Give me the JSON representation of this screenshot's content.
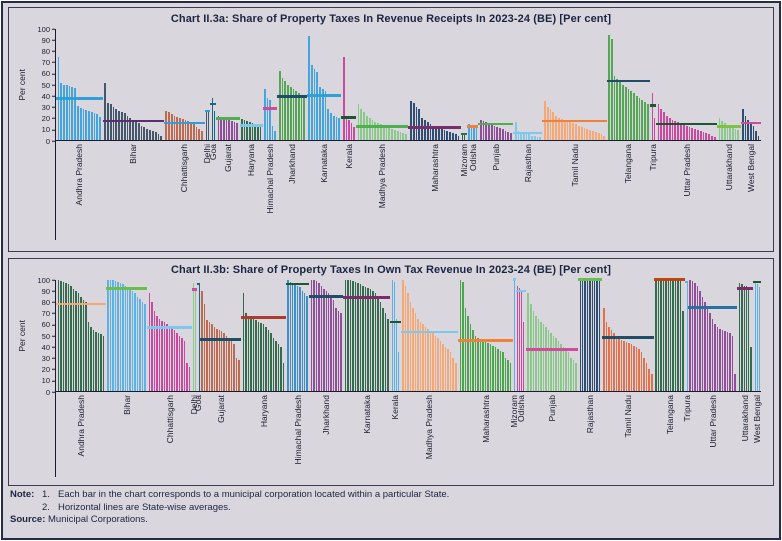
{
  "axis": {
    "ylabel": "Per cent",
    "yticks": [
      0,
      10,
      20,
      30,
      40,
      50,
      60,
      70,
      80,
      90,
      100
    ]
  },
  "notes": {
    "note_label": "Note:",
    "item1_num": "1.",
    "item1": "Each bar in the chart corresponds to a municipal corporation located within a particular State.",
    "item2_num": "2.",
    "item2": "Horizontal lines are State-wise averages.",
    "source_label": "Source:",
    "source_text": "Municipal Corporations."
  },
  "chart_data": [
    {
      "type": "bar",
      "title": "Chart II.3a: Share of Property Taxes In Revenue Receipts In 2023-24 (BE) [Per cent]",
      "ylabel": "Per cent",
      "ylim": [
        0,
        100
      ],
      "legend": "none",
      "grid": false,
      "annotation": "Each bar is a municipal corporation; horizontal lines are State-wise averages",
      "groups": [
        {
          "state": "Andhra Pradesh",
          "bar_color": "#44A4DC",
          "avg": 37,
          "avg_line_color": "#2E9FD8",
          "values": [
            75,
            51,
            50,
            50,
            49,
            48,
            47,
            31,
            29,
            28,
            27,
            26,
            25,
            24,
            23,
            21
          ]
        },
        {
          "state": "Bihar",
          "bar_color": "#45586B",
          "avg": 17,
          "avg_line_color": "#5B2C6F",
          "values": [
            51,
            33,
            32,
            30,
            28,
            26,
            25,
            24,
            22,
            20,
            18,
            16,
            15,
            13,
            12,
            10,
            9,
            8,
            7,
            5,
            4
          ]
        },
        {
          "state": "Chhattisgarh",
          "bar_color": "#BC6A50",
          "avg": 15,
          "avg_line_color": "#2E9FD8",
          "values": [
            26,
            25,
            23,
            22,
            21,
            20,
            19,
            18,
            17,
            16,
            14,
            12,
            10,
            8
          ]
        },
        {
          "state": "Delhi",
          "bar_color": "#45586B",
          "avg": 26,
          "avg_line_color": "#2E9FD8",
          "values": [
            27,
            26
          ]
        },
        {
          "state": "Goa",
          "bar_color": "#166A7F",
          "avg": 32,
          "avg_line_color": "#166A7F",
          "values": [
            38,
            26
          ]
        },
        {
          "state": "Gujarat",
          "bar_color": "#8E4F96",
          "avg": 19,
          "avg_line_color": "#4CAF50",
          "values": [
            22,
            21,
            20,
            19,
            18,
            17,
            16,
            15
          ]
        },
        {
          "state": "Haryana",
          "bar_color": "#336B4D",
          "avg": 13,
          "avg_line_color": "#7EC8EC",
          "values": [
            19,
            18,
            17,
            16,
            15,
            14,
            13,
            12
          ]
        },
        {
          "state": "Himachal Pradesh",
          "bar_color": "#44A4DC",
          "avg": 28,
          "avg_line_color": "#D14A9E",
          "values": [
            46,
            38,
            36,
            13,
            8
          ]
        },
        {
          "state": "Jharkhand",
          "bar_color": "#54A654",
          "avg": 39,
          "avg_line_color": "#1F4E6B",
          "values": [
            62,
            56,
            53,
            50,
            48,
            46,
            44,
            42,
            40,
            38
          ]
        },
        {
          "state": "Karnataka",
          "bar_color": "#44A4DC",
          "avg": 40,
          "avg_line_color": "#2E9FD8",
          "values": [
            94,
            68,
            64,
            61,
            48,
            46,
            44,
            28,
            24,
            22,
            21,
            20
          ]
        },
        {
          "state": "Kerala",
          "bar_color": "#C84A9E",
          "avg": 20,
          "avg_line_color": "#1E5631",
          "values": [
            75,
            21,
            18,
            15,
            12
          ]
        },
        {
          "state": "Madhya Pradesh",
          "bar_color": "#8BC98B",
          "avg": 12,
          "avg_line_color": "#4CAF50",
          "values": [
            32,
            28,
            25,
            22,
            20,
            18,
            16,
            15,
            14,
            13,
            12,
            11,
            10,
            9,
            8,
            7,
            6,
            5
          ]
        },
        {
          "state": "Maharashtra",
          "bar_color": "#2E4E72",
          "avg": 11,
          "avg_line_color": "#7B2D6B",
          "values": [
            35,
            33,
            30,
            28,
            20,
            18,
            16,
            14,
            13,
            12,
            11,
            10,
            9,
            8,
            7,
            6,
            5,
            4
          ]
        },
        {
          "state": "Mizoram",
          "bar_color": "#336B4D",
          "avg": 5,
          "avg_line_color": "#336B4D",
          "values": [
            6,
            5
          ]
        },
        {
          "state": "Odisha",
          "bar_color": "#44A4DC",
          "avg": 12,
          "avg_line_color": "#F0813C",
          "values": [
            14,
            13,
            12,
            11
          ]
        },
        {
          "state": "Punjab",
          "bar_color": "#8E4F96",
          "avg": 14,
          "avg_line_color": "#4CAF50",
          "values": [
            18,
            17,
            16,
            15,
            14,
            13,
            12,
            11,
            10,
            8,
            7,
            6
          ]
        },
        {
          "state": "Rajasthan",
          "bar_color": "#7EC8EC",
          "avg": 6,
          "avg_line_color": "#7EC8EC",
          "values": [
            16,
            8,
            7,
            6,
            5,
            5,
            4,
            4,
            3,
            3
          ]
        },
        {
          "state": "Tamil Nadu",
          "bar_color": "#F5A873",
          "avg": 17,
          "avg_line_color": "#F0813C",
          "values": [
            35,
            30,
            28,
            25,
            22,
            20,
            19,
            18,
            17,
            16,
            15,
            14,
            13,
            12,
            11,
            10,
            9,
            8,
            7,
            6,
            5,
            4
          ]
        },
        {
          "state": "Telangana",
          "bar_color": "#54A654",
          "avg": 53,
          "avg_line_color": "#1F4E6B",
          "values": [
            95,
            91,
            58,
            55,
            52,
            50,
            48,
            46,
            44,
            42,
            40,
            38,
            36,
            34,
            32
          ]
        },
        {
          "state": "Tripura",
          "bar_color": "#C84A9E",
          "avg": 31,
          "avg_line_color": "#1E5631",
          "values": [
            42,
            20
          ]
        },
        {
          "state": "Uttar Pradesh",
          "bar_color": "#C84A9E",
          "avg": 14,
          "avg_line_color": "#1E5631",
          "values": [
            32,
            28,
            25,
            22,
            20,
            18,
            17,
            16,
            15,
            14,
            13,
            12,
            11,
            10,
            9,
            8,
            7,
            6,
            5,
            4,
            3
          ]
        },
        {
          "state": "Uttarakhand",
          "bar_color": "#8BC98B",
          "avg": 12,
          "avg_line_color": "#7DC242",
          "values": [
            20,
            17,
            15,
            13,
            12,
            11,
            10,
            9
          ]
        },
        {
          "state": "West Bengal",
          "bar_color": "#2E4E72",
          "avg": 15,
          "avg_line_color": "#D14A9E",
          "values": [
            28,
            22,
            18,
            15,
            13,
            8,
            4
          ]
        }
      ]
    },
    {
      "type": "bar",
      "title": "Chart II.3b: Share of Property Taxes In Own Tax Revenue In 2023-24 (BE) [Per cent]",
      "ylabel": "Per cent",
      "ylim": [
        0,
        100
      ],
      "legend": "none",
      "grid": false,
      "annotation": "Each bar is a municipal corporation; horizontal lines are State-wise averages",
      "groups": [
        {
          "state": "Andhra Pradesh",
          "bar_color": "#336B4D",
          "avg": 78,
          "avg_line_color": "#F5A873",
          "values": [
            100,
            99,
            98,
            97,
            96,
            95,
            92,
            90,
            88,
            85,
            82,
            80,
            62,
            58,
            55,
            53,
            52,
            51,
            50
          ]
        },
        {
          "state": "Bihar",
          "bar_color": "#5BB3E4",
          "avg": 92,
          "avg_line_color": "#6ABF4B",
          "values": [
            100,
            100,
            100,
            99,
            98,
            97,
            96,
            95,
            94,
            92,
            90,
            88,
            85,
            83,
            80,
            78
          ]
        },
        {
          "state": "Chhattisgarh",
          "bar_color": "#C84A9E",
          "avg": 57,
          "avg_line_color": "#7EC8EC",
          "values": [
            88,
            80,
            72,
            68,
            65,
            63,
            62,
            60,
            58,
            56,
            55,
            52,
            50,
            48,
            45,
            25,
            22
          ]
        },
        {
          "state": "Delhi",
          "bar_color": "#8BC98B",
          "avg": 91,
          "avg_line_color": "#D14A9E",
          "values": [
            97,
            90
          ]
        },
        {
          "state": "Goa",
          "bar_color": "#166A7F",
          "avg": 96,
          "avg_line_color": "#166A7F",
          "values": [
            96
          ]
        },
        {
          "state": "Gujarat",
          "bar_color": "#BC6A50",
          "avg": 46,
          "avg_line_color": "#1F4E6B",
          "values": [
            90,
            78,
            64,
            62,
            60,
            58,
            56,
            55,
            54,
            52,
            50,
            48,
            45,
            42,
            30,
            28
          ]
        },
        {
          "state": "Haryana",
          "bar_color": "#336B4D",
          "avg": 66,
          "avg_line_color": "#B03A2E",
          "values": [
            88,
            70,
            68,
            66,
            65,
            64,
            62,
            61,
            60,
            58,
            55,
            52,
            48,
            45,
            42,
            40,
            25
          ]
        },
        {
          "state": "Himachal Pradesh",
          "bar_color": "#3E8FC4",
          "avg": 96,
          "avg_line_color": "#1E5631",
          "values": [
            100,
            98,
            97,
            96,
            95,
            94,
            90,
            88,
            86
          ]
        },
        {
          "state": "Jharkhand",
          "bar_color": "#8E4F96",
          "avg": 85,
          "avg_line_color": "#1F4E6B",
          "values": [
            100,
            100,
            99,
            97,
            95,
            92,
            90,
            88,
            85,
            82,
            75,
            72,
            70
          ]
        },
        {
          "state": "Karnataka",
          "bar_color": "#336B4D",
          "avg": 84,
          "avg_line_color": "#7B2D6B",
          "values": [
            100,
            100,
            100,
            99,
            98,
            97,
            96,
            95,
            94,
            93,
            92,
            90,
            88,
            85,
            80,
            75,
            70,
            65
          ]
        },
        {
          "state": "Kerala",
          "bar_color": "#5BB3E4",
          "avg": 62,
          "avg_line_color": "#1E5631",
          "values": [
            100,
            98,
            65,
            35
          ]
        },
        {
          "state": "Madhya Pradesh",
          "bar_color": "#F5A873",
          "avg": 53,
          "avg_line_color": "#7EC8EC",
          "values": [
            100,
            95,
            88,
            80,
            75,
            70,
            65,
            62,
            60,
            58,
            56,
            54,
            52,
            50,
            48,
            45,
            42,
            40,
            38,
            35,
            30,
            25
          ]
        },
        {
          "state": "Maharashtra",
          "bar_color": "#4CA64C",
          "avg": 45,
          "avg_line_color": "#F0813C",
          "values": [
            100,
            98,
            75,
            68,
            60,
            55,
            50,
            48,
            46,
            45,
            44,
            43,
            42,
            41,
            40,
            38,
            36,
            35,
            30,
            28,
            25
          ]
        },
        {
          "state": "Mizoram",
          "bar_color": "#5BB3E4",
          "avg": 100,
          "avg_line_color": "#7EC8EC",
          "values": [
            100
          ]
        },
        {
          "state": "Odisha",
          "bar_color": "#C84A9E",
          "avg": 90,
          "avg_line_color": "#7EC8EC",
          "values": [
            95,
            93,
            91,
            62
          ]
        },
        {
          "state": "Punjab",
          "bar_color": "#8BC98B",
          "avg": 37,
          "avg_line_color": "#D14A9E",
          "values": [
            88,
            78,
            72,
            68,
            65,
            62,
            60,
            58,
            55,
            52,
            50,
            48,
            45,
            42,
            40,
            38,
            35,
            30,
            28,
            25
          ]
        },
        {
          "state": "Rajasthan",
          "bar_color": "#2E4E72",
          "avg": 100,
          "avg_line_color": "#6ABF4B",
          "values": [
            100,
            100,
            100,
            100,
            100,
            100,
            100,
            100,
            100
          ]
        },
        {
          "state": "Tamil Nadu",
          "bar_color": "#E0714A",
          "avg": 48,
          "avg_line_color": "#1F4E6B",
          "values": [
            75,
            62,
            58,
            55,
            52,
            50,
            48,
            46,
            45,
            44,
            43,
            42,
            41,
            40,
            38,
            35,
            30,
            25,
            20,
            15
          ]
        },
        {
          "state": "Telangana",
          "bar_color": "#336B4D",
          "avg": 100,
          "avg_line_color": "#C1440E",
          "values": [
            100,
            100,
            100,
            100,
            100,
            100,
            100,
            100,
            100,
            100,
            100,
            72
          ]
        },
        {
          "state": "Tripura",
          "bar_color": "#5BB3E4",
          "avg": 98,
          "avg_line_color": "#5BB3E4",
          "values": [
            98
          ]
        },
        {
          "state": "Uttar Pradesh",
          "bar_color": "#8E4F96",
          "avg": 75,
          "avg_line_color": "#2471A3",
          "values": [
            100,
            99,
            97,
            95,
            90,
            85,
            80,
            75,
            70,
            65,
            60,
            58,
            56,
            55,
            54,
            53,
            52,
            50,
            15
          ]
        },
        {
          "state": "Uttarakhand",
          "bar_color": "#336B4D",
          "avg": 92,
          "avg_line_color": "#7B2D6B",
          "values": [
            97,
            96,
            95,
            95,
            94,
            40
          ]
        },
        {
          "state": "West Bengal",
          "bar_color": "#5BB3E4",
          "avg": 98,
          "avg_line_color": "#1E5631",
          "values": [
            98,
            96,
            94
          ]
        }
      ]
    }
  ]
}
